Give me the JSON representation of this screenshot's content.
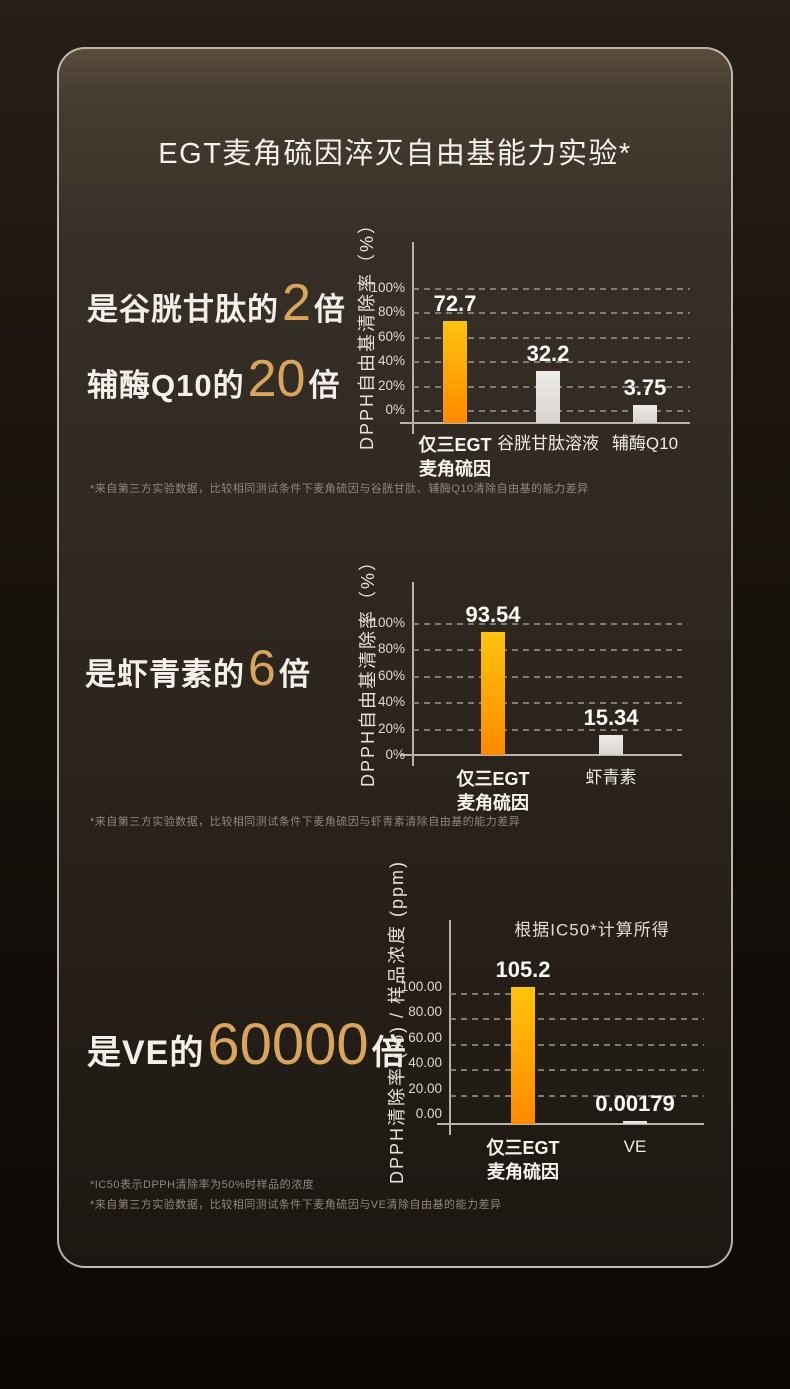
{
  "title": "EGT麦角硫因淬灭自由基能力实验*",
  "colors": {
    "gold_accent": "#D9A55C",
    "bar_orange_top": "#FFC30D",
    "bar_orange_bottom": "#FF8A00",
    "bar_white": "#E3E0DC",
    "card_background": "#2F2922",
    "outer_background": "#130E09",
    "text_primary": "#F3F0EB",
    "text_footnote": "#8E887F"
  },
  "sections": [
    {
      "headlines": [
        {
          "prefix": "是谷胱甘肽的",
          "number": "2",
          "suffix": "倍"
        },
        {
          "prefix": "辅酶Q10的",
          "number": "20",
          "suffix": "倍"
        }
      ],
      "footnotes": [
        "*来自第三方实验数据，比较相同测试条件下麦角硫因与谷胱甘肽、辅酶Q10清除自由基的能力差异"
      ]
    },
    {
      "headlines": [
        {
          "prefix": "是虾青素的",
          "number": "6",
          "suffix": "倍"
        }
      ],
      "footnotes": [
        "*来自第三方实验数据，比较相同测试条件下麦角硫因与虾青素清除自由基的能力差异"
      ]
    },
    {
      "headlines": [
        {
          "prefix": "是VE的",
          "number": "60000",
          "suffix": "倍"
        }
      ],
      "footnotes": [
        "*IC50表示DPPH清除率为50%时样品的浓度",
        "*来自第三方实验数据，比较相同测试条件下麦角硫因与VE清除自由基的能力差异"
      ]
    }
  ],
  "chart_data": [
    {
      "type": "bar",
      "title": "",
      "ylabel": "DPPH自由基清除率（%）",
      "xlabel": "",
      "ylim": [
        0,
        100
      ],
      "yticks": [
        "0%",
        "20%",
        "40%",
        "60%",
        "80%",
        "100%"
      ],
      "grid": "dashed-horizontal",
      "legend": "none",
      "categories": [
        "仅三EGT\n麦角硫因",
        "谷胱甘肽溶液",
        "辅酶Q10"
      ],
      "values": [
        72.7,
        32.2,
        3.75
      ],
      "value_labels": [
        "72.7",
        "32.2",
        "3.75"
      ],
      "bar_styles": [
        "orange",
        "white",
        "white"
      ]
    },
    {
      "type": "bar",
      "title": "",
      "ylabel": "DPPH自由基清除率（%）",
      "xlabel": "",
      "ylim": [
        0,
        100
      ],
      "yticks": [
        "0%",
        "20%",
        "40%",
        "60%",
        "80%",
        "100%"
      ],
      "grid": "dashed-horizontal",
      "legend": "none",
      "categories": [
        "仅三EGT\n麦角硫因",
        "虾青素"
      ],
      "values": [
        93.54,
        15.34
      ],
      "value_labels": [
        "93.54",
        "15.34"
      ],
      "bar_styles": [
        "orange",
        "white"
      ]
    },
    {
      "type": "bar",
      "title": "",
      "annotation": "根据IC50*计算所得",
      "ylabel": "DPPH清除率 (%) / 样品浓度 (ppm)",
      "xlabel": "",
      "ylim": [
        0,
        100
      ],
      "yticks": [
        "0.00",
        "20.00",
        "40.00",
        "60.00",
        "80.00",
        "100.00"
      ],
      "grid": "dashed-horizontal",
      "legend": "none",
      "categories": [
        "仅三EGT\n麦角硫因",
        "VE"
      ],
      "values": [
        105.2,
        0.00179
      ],
      "value_labels": [
        "105.2",
        "0.00179"
      ],
      "bar_styles": [
        "orange",
        "white"
      ]
    }
  ]
}
